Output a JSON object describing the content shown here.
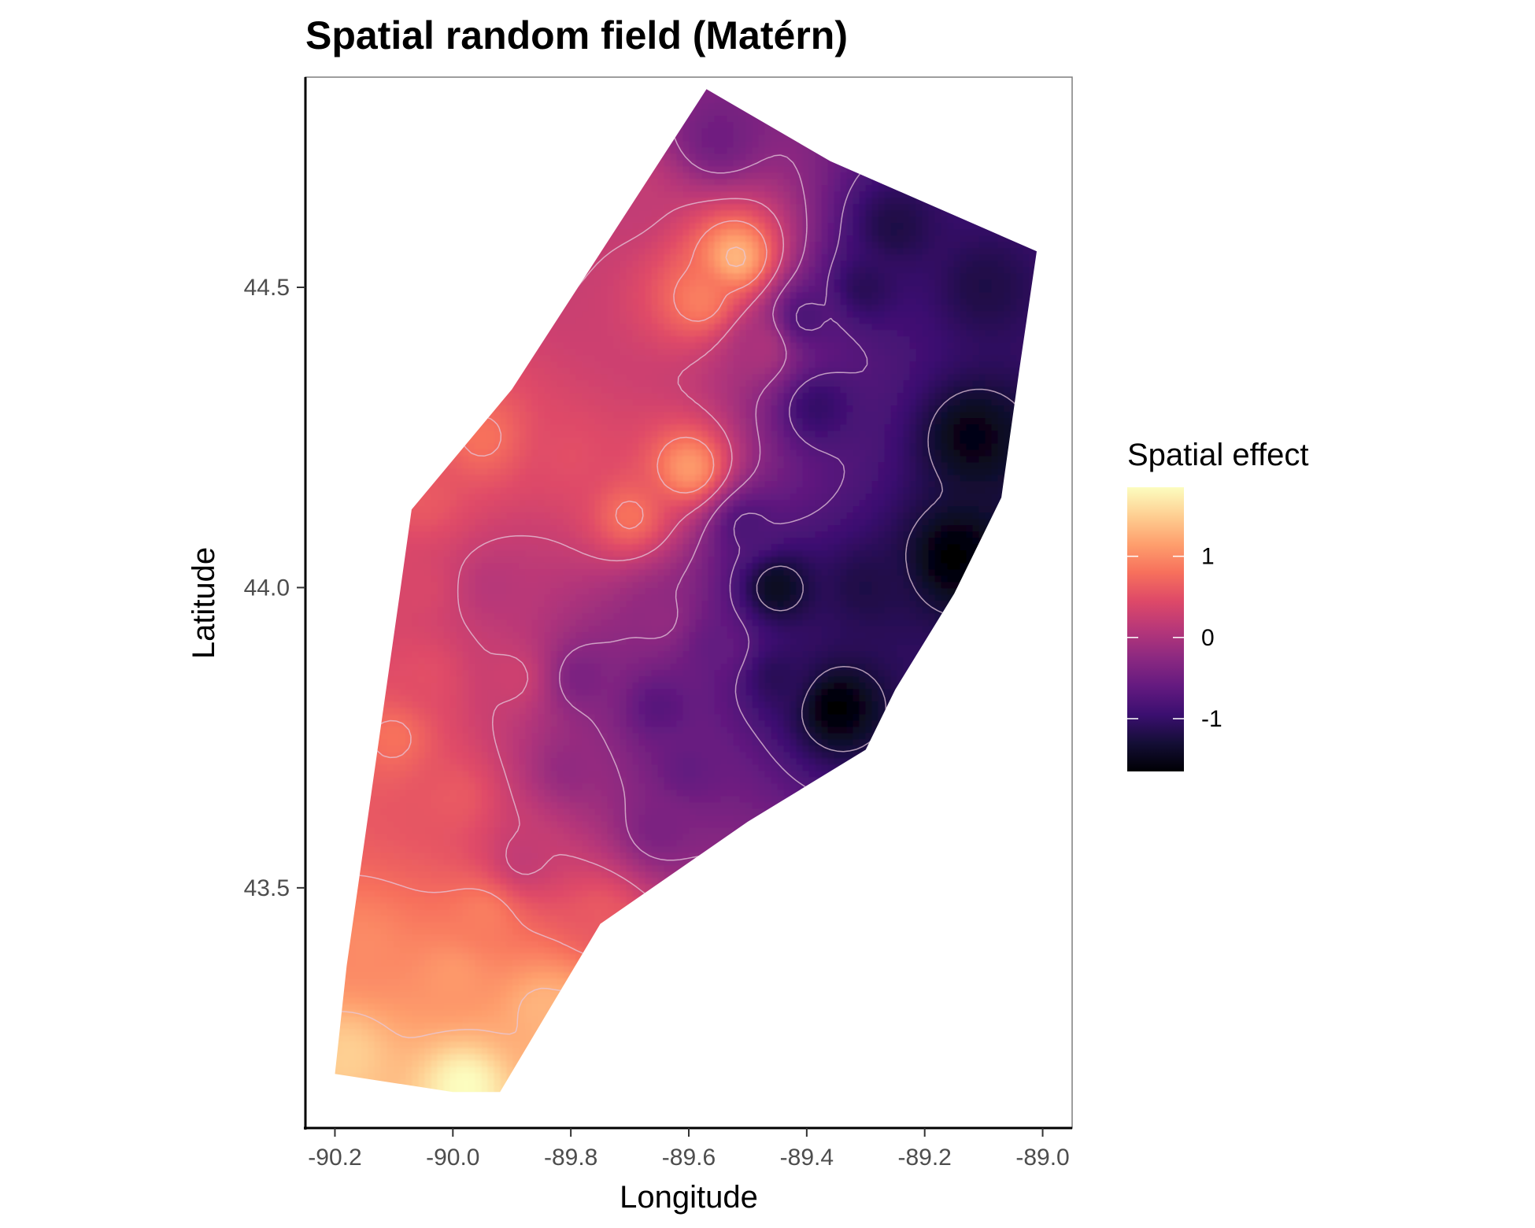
{
  "chart_data": {
    "type": "heatmap",
    "title": "Spatial random field (Matérn)",
    "xlabel": "Longitude",
    "ylabel": "Latitude",
    "xlim": [
      -90.25,
      -88.95
    ],
    "ylim": [
      43.1,
      44.85
    ],
    "x_ticks": [
      -90.2,
      -90.0,
      -89.8,
      -89.6,
      -89.4,
      -89.2,
      -89.0
    ],
    "y_ticks": [
      43.5,
      44.0,
      44.5
    ],
    "x_tick_labels": [
      "-90.2",
      "-90.0",
      "-89.8",
      "-89.6",
      "-89.4",
      "-89.2",
      "-89.0"
    ],
    "y_tick_labels": [
      "43.5",
      "44.0",
      "44.5"
    ],
    "colormap": "magma",
    "colors": [
      "#000004",
      "#140e36",
      "#3b0f70",
      "#641a80",
      "#8c2981",
      "#b73779",
      "#de4968",
      "#f7705c",
      "#fe9f6d",
      "#fecf92",
      "#fcfdbf"
    ],
    "contour_color": "#e6c8dc",
    "grid": false,
    "legend": {
      "title": "Spatial effect",
      "position": "right",
      "range": [
        -1.65,
        1.85
      ],
      "ticks": [
        1,
        0,
        -1
      ],
      "tick_labels": [
        "1",
        "0",
        "-1"
      ]
    },
    "domain_polygon": [
      [
        -89.57,
        44.83
      ],
      [
        -89.36,
        44.71
      ],
      [
        -89.01,
        44.56
      ],
      [
        -89.04,
        44.36
      ],
      [
        -89.07,
        44.15
      ],
      [
        -89.15,
        43.99
      ],
      [
        -89.25,
        43.83
      ],
      [
        -89.3,
        43.73
      ],
      [
        -89.5,
        43.61
      ],
      [
        -89.75,
        43.44
      ],
      [
        -89.92,
        43.16
      ],
      [
        -90.0,
        43.16
      ],
      [
        -90.2,
        43.19
      ],
      [
        -90.18,
        43.37
      ],
      [
        -90.09,
        43.99
      ],
      [
        -90.07,
        44.13
      ],
      [
        -89.9,
        44.33
      ]
    ],
    "field_points": [
      [
        -89.52,
        44.55,
        1.3
      ],
      [
        -89.58,
        44.48,
        0.9
      ],
      [
        -89.6,
        44.2,
        1.1
      ],
      [
        -89.7,
        44.12,
        0.8
      ],
      [
        -89.8,
        44.22,
        0.5
      ],
      [
        -89.95,
        44.25,
        0.8
      ],
      [
        -90.05,
        44.15,
        0.6
      ],
      [
        -90.06,
        44.0,
        0.4
      ],
      [
        -89.93,
        44.0,
        0.1
      ],
      [
        -89.55,
        44.75,
        -0.5
      ],
      [
        -89.7,
        44.65,
        0.2
      ],
      [
        -89.48,
        44.4,
        0.0
      ],
      [
        -89.4,
        44.45,
        -0.8
      ],
      [
        -89.38,
        44.3,
        -1.0
      ],
      [
        -89.3,
        44.5,
        -1.1
      ],
      [
        -89.25,
        44.6,
        -1.2
      ],
      [
        -89.1,
        44.5,
        -1.2
      ],
      [
        -89.12,
        44.25,
        -1.55
      ],
      [
        -89.15,
        44.05,
        -1.65
      ],
      [
        -89.3,
        44.0,
        -1.2
      ],
      [
        -89.45,
        44.0,
        -1.45
      ],
      [
        -89.5,
        44.1,
        -0.8
      ],
      [
        -89.35,
        43.8,
        -1.65
      ],
      [
        -89.45,
        43.85,
        -1.1
      ],
      [
        -89.55,
        43.9,
        -0.6
      ],
      [
        -89.65,
        43.95,
        -0.2
      ],
      [
        -89.78,
        43.85,
        -0.4
      ],
      [
        -89.65,
        43.8,
        -0.7
      ],
      [
        -89.8,
        43.7,
        -0.2
      ],
      [
        -89.6,
        43.7,
        -0.6
      ],
      [
        -89.65,
        43.6,
        -0.4
      ],
      [
        -89.88,
        43.55,
        0.2
      ],
      [
        -90.0,
        43.65,
        0.6
      ],
      [
        -90.1,
        43.75,
        0.8
      ],
      [
        -90.05,
        43.85,
        0.5
      ],
      [
        -89.9,
        43.85,
        0.3
      ],
      [
        -90.15,
        43.4,
        1.0
      ],
      [
        -90.0,
        43.35,
        1.1
      ],
      [
        -89.85,
        43.3,
        1.3
      ],
      [
        -90.18,
        43.22,
        1.5
      ],
      [
        -89.98,
        43.17,
        1.85
      ],
      [
        -89.8,
        43.28,
        1.4
      ],
      [
        -89.75,
        43.45,
        0.6
      ],
      [
        -89.95,
        43.45,
        0.9
      ]
    ]
  }
}
